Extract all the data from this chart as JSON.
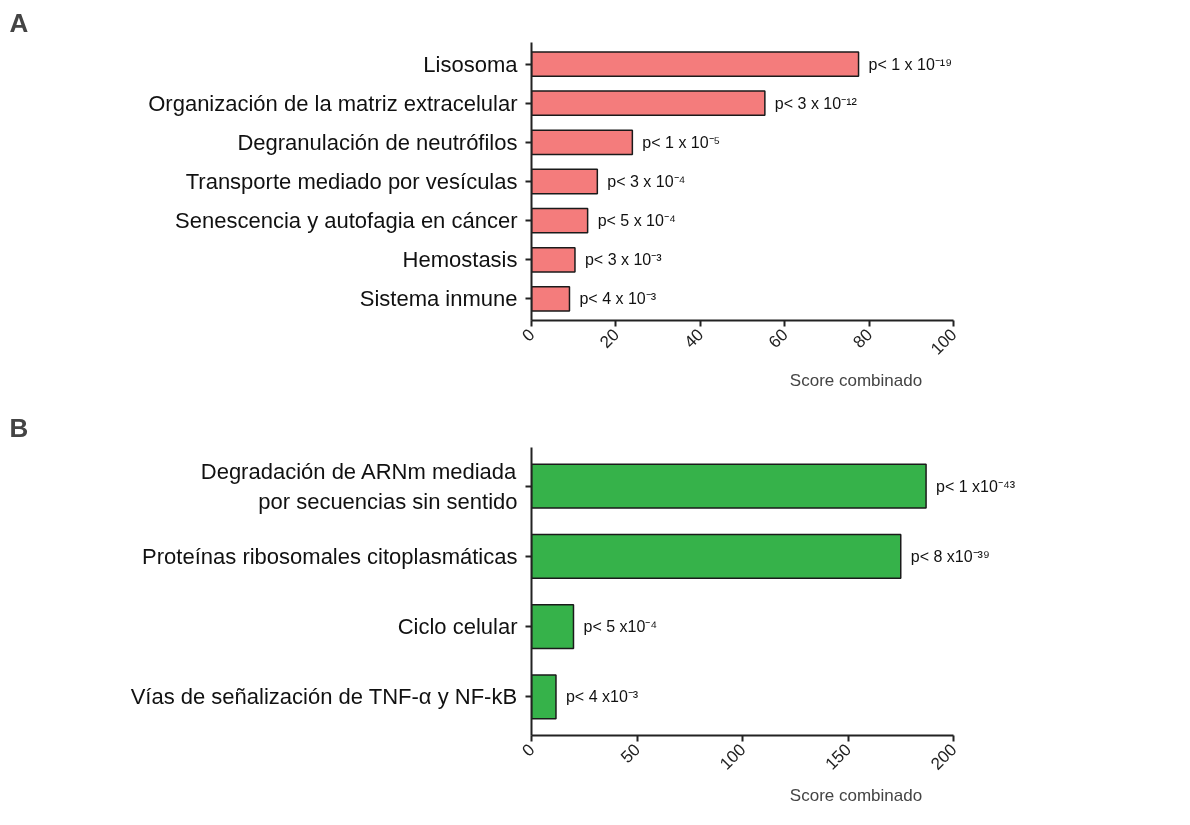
{
  "chart_data": [
    {
      "type": "bar",
      "orientation": "horizontal",
      "title": "A",
      "xlabel": "Score combinado",
      "categories": [
        "Lisosoma",
        "Organización de la matriz extracelular",
        "Degranulación de neutrófilos",
        "Transporte mediado por vesículas",
        "Senescencia y autofagia en cáncer",
        "Hemostasis",
        "Sistema inmune"
      ],
      "values": [
        77.5,
        55.3,
        23.9,
        15.6,
        13.3,
        10.3,
        9.0
      ],
      "value_labels": [
        "p< 1 x 10⁻¹⁹",
        "p< 3 x 10⁻¹²",
        "p< 1 x 10⁻⁵",
        "p< 3 x 10⁻⁴",
        "p< 5 x 10⁻⁴",
        "p< 3 x 10⁻³",
        "p< 4 x 10⁻³"
      ],
      "color": "#f47c7c",
      "xlim": [
        0,
        100
      ],
      "xticks": [
        0,
        20,
        40,
        60,
        80,
        100
      ],
      "grid": false
    },
    {
      "type": "bar",
      "orientation": "horizontal",
      "title": "B",
      "xlabel": "Score combinado",
      "categories": [
        "Degradación de ARNm mediada\npor secuencias sin sentido",
        "Proteínas ribosomales citoplasmáticas",
        "Ciclo celular",
        "Vías de señalización de TNF-α y NF-kB"
      ],
      "values": [
        187,
        175,
        19.9,
        11.6
      ],
      "value_labels": [
        "p< 1 x10⁻⁴³",
        "p< 8 x10⁻³⁹",
        "p< 5 x10⁻⁴",
        "p< 4 x10⁻³"
      ],
      "color": "#36b24a",
      "xlim": [
        0,
        200
      ],
      "xticks": [
        0,
        50,
        100,
        150,
        200
      ],
      "grid": false
    }
  ]
}
